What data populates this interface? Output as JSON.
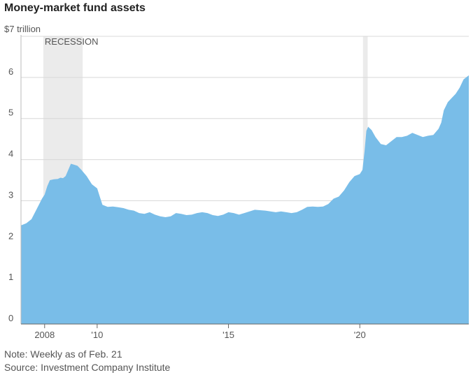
{
  "chart_data": {
    "type": "area",
    "title": "Money-market fund assets",
    "ylabel": "trillion",
    "ylim": [
      0,
      7
    ],
    "y_ticks": [
      {
        "value": 0,
        "label": "0"
      },
      {
        "value": 1,
        "label": "1"
      },
      {
        "value": 2,
        "label": "2"
      },
      {
        "value": 3,
        "label": "3"
      },
      {
        "value": 4,
        "label": "4"
      },
      {
        "value": 5,
        "label": "5"
      },
      {
        "value": 6,
        "label": "6"
      },
      {
        "value": 7,
        "label": "$7 trillion"
      }
    ],
    "xlim": [
      2007.1,
      2024.15
    ],
    "x_ticks": [
      {
        "value": 2008,
        "label": "2008"
      },
      {
        "value": 2010,
        "label": "'10"
      },
      {
        "value": 2015,
        "label": "'15"
      },
      {
        "value": 2020,
        "label": "'20"
      }
    ],
    "shaded_periods": [
      {
        "start": 2007.95,
        "end": 2009.45,
        "label": "RECESSION"
      },
      {
        "start": 2020.12,
        "end": 2020.3,
        "label": ""
      }
    ],
    "series": [
      {
        "name": "Money-market fund assets",
        "color": "#79bde8",
        "points": [
          [
            2007.1,
            2.4
          ],
          [
            2007.3,
            2.45
          ],
          [
            2007.5,
            2.55
          ],
          [
            2007.7,
            2.8
          ],
          [
            2007.9,
            3.05
          ],
          [
            2008.0,
            3.15
          ],
          [
            2008.1,
            3.35
          ],
          [
            2008.2,
            3.5
          ],
          [
            2008.35,
            3.52
          ],
          [
            2008.5,
            3.53
          ],
          [
            2008.6,
            3.56
          ],
          [
            2008.7,
            3.55
          ],
          [
            2008.8,
            3.6
          ],
          [
            2008.9,
            3.75
          ],
          [
            2009.0,
            3.9
          ],
          [
            2009.1,
            3.88
          ],
          [
            2009.25,
            3.85
          ],
          [
            2009.4,
            3.75
          ],
          [
            2009.6,
            3.6
          ],
          [
            2009.8,
            3.4
          ],
          [
            2010.0,
            3.3
          ],
          [
            2010.1,
            3.1
          ],
          [
            2010.2,
            2.9
          ],
          [
            2010.4,
            2.85
          ],
          [
            2010.6,
            2.86
          ],
          [
            2010.8,
            2.84
          ],
          [
            2011.0,
            2.82
          ],
          [
            2011.2,
            2.78
          ],
          [
            2011.4,
            2.76
          ],
          [
            2011.6,
            2.7
          ],
          [
            2011.8,
            2.68
          ],
          [
            2012.0,
            2.72
          ],
          [
            2012.2,
            2.66
          ],
          [
            2012.4,
            2.62
          ],
          [
            2012.6,
            2.6
          ],
          [
            2012.8,
            2.62
          ],
          [
            2013.0,
            2.7
          ],
          [
            2013.2,
            2.68
          ],
          [
            2013.4,
            2.65
          ],
          [
            2013.6,
            2.66
          ],
          [
            2013.8,
            2.7
          ],
          [
            2014.0,
            2.72
          ],
          [
            2014.2,
            2.7
          ],
          [
            2014.4,
            2.65
          ],
          [
            2014.6,
            2.63
          ],
          [
            2014.8,
            2.66
          ],
          [
            2015.0,
            2.72
          ],
          [
            2015.2,
            2.7
          ],
          [
            2015.4,
            2.66
          ],
          [
            2015.6,
            2.7
          ],
          [
            2015.8,
            2.74
          ],
          [
            2016.0,
            2.78
          ],
          [
            2016.2,
            2.77
          ],
          [
            2016.4,
            2.76
          ],
          [
            2016.6,
            2.74
          ],
          [
            2016.8,
            2.72
          ],
          [
            2017.0,
            2.74
          ],
          [
            2017.2,
            2.72
          ],
          [
            2017.4,
            2.7
          ],
          [
            2017.6,
            2.72
          ],
          [
            2017.8,
            2.78
          ],
          [
            2018.0,
            2.85
          ],
          [
            2018.2,
            2.86
          ],
          [
            2018.4,
            2.85
          ],
          [
            2018.6,
            2.86
          ],
          [
            2018.8,
            2.92
          ],
          [
            2019.0,
            3.05
          ],
          [
            2019.2,
            3.1
          ],
          [
            2019.4,
            3.25
          ],
          [
            2019.6,
            3.45
          ],
          [
            2019.8,
            3.6
          ],
          [
            2020.0,
            3.65
          ],
          [
            2020.1,
            3.75
          ],
          [
            2020.18,
            4.2
          ],
          [
            2020.25,
            4.7
          ],
          [
            2020.32,
            4.8
          ],
          [
            2020.45,
            4.72
          ],
          [
            2020.6,
            4.55
          ],
          [
            2020.8,
            4.38
          ],
          [
            2021.0,
            4.35
          ],
          [
            2021.2,
            4.45
          ],
          [
            2021.4,
            4.55
          ],
          [
            2021.6,
            4.55
          ],
          [
            2021.8,
            4.58
          ],
          [
            2022.0,
            4.65
          ],
          [
            2022.2,
            4.6
          ],
          [
            2022.4,
            4.55
          ],
          [
            2022.6,
            4.58
          ],
          [
            2022.8,
            4.6
          ],
          [
            2023.0,
            4.75
          ],
          [
            2023.1,
            4.9
          ],
          [
            2023.2,
            5.2
          ],
          [
            2023.35,
            5.4
          ],
          [
            2023.5,
            5.5
          ],
          [
            2023.65,
            5.6
          ],
          [
            2023.8,
            5.75
          ],
          [
            2023.95,
            5.95
          ],
          [
            2024.15,
            6.05
          ]
        ]
      }
    ],
    "grid": true
  },
  "footer": {
    "note": "Note: Weekly as of Feb. 21",
    "source": "Source: Investment Company Institute"
  }
}
